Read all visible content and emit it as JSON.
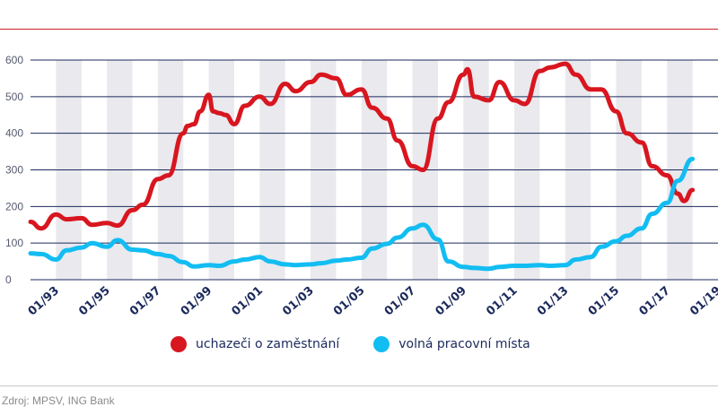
{
  "title_text": "",
  "source_text": "Zdroj: MPSV, ING Bank",
  "colors": {
    "title": "#cf2027",
    "series_unemployed": "#d8161f",
    "series_vacancies": "#12bdf2",
    "shade": "#e9e9ee",
    "grid": "#1c2a5c",
    "axis_text": "#1c2a5c"
  },
  "chart_data": {
    "type": "line",
    "title": "",
    "xlabel": "",
    "ylabel": "",
    "xlim": [
      "1992-01",
      "2019-01"
    ],
    "ylim": [
      0,
      600
    ],
    "y_ticks": [
      "0",
      "100",
      "200",
      "300",
      "400",
      "500",
      "600"
    ],
    "x_ticks": [
      "01/93",
      "01/95",
      "01/97",
      "01/99",
      "01/01",
      "01/03",
      "01/05",
      "01/07",
      "01/09",
      "01/11",
      "01/13",
      "01/15",
      "01/17",
      "01/19"
    ],
    "shaded_years": [
      1993,
      1995,
      1997,
      1999,
      2001,
      2003,
      2005,
      2007,
      2009,
      2011,
      2013,
      2015,
      2017
    ],
    "grid": true,
    "legend_position": "bottom",
    "series": [
      {
        "name": "uchazeči o zaměstnání",
        "color": "#d8161f",
        "x": [
          "1992-01",
          "1992-06",
          "1993-01",
          "1993-06",
          "1994-01",
          "1994-06",
          "1995-01",
          "1995-06",
          "1996-01",
          "1996-06",
          "1997-01",
          "1997-06",
          "1998-01",
          "1998-03",
          "1998-06",
          "1998-09",
          "1999-01",
          "1999-03",
          "1999-06",
          "1999-09",
          "2000-01",
          "2000-06",
          "2001-01",
          "2001-06",
          "2002-01",
          "2002-06",
          "2003-01",
          "2003-06",
          "2004-01",
          "2004-06",
          "2005-01",
          "2005-06",
          "2006-01",
          "2006-06",
          "2007-01",
          "2007-06",
          "2008-01",
          "2008-06",
          "2009-01",
          "2009-03",
          "2009-06",
          "2010-01",
          "2010-06",
          "2011-01",
          "2011-06",
          "2012-01",
          "2012-06",
          "2013-01",
          "2013-06",
          "2014-01",
          "2014-06",
          "2015-01",
          "2015-06",
          "2016-01",
          "2016-06",
          "2017-01",
          "2017-06",
          "2017-09",
          "2018-01"
        ],
        "values": [
          158,
          140,
          178,
          165,
          168,
          150,
          155,
          148,
          190,
          205,
          275,
          285,
          400,
          420,
          425,
          460,
          505,
          460,
          455,
          450,
          425,
          475,
          500,
          480,
          535,
          515,
          540,
          560,
          550,
          505,
          520,
          470,
          440,
          380,
          310,
          300,
          440,
          485,
          560,
          575,
          500,
          490,
          540,
          490,
          480,
          570,
          580,
          590,
          560,
          520,
          520,
          460,
          400,
          375,
          310,
          285,
          235,
          215,
          245
        ]
      },
      {
        "name": "volná pracovní místa",
        "color": "#12bdf2",
        "x": [
          "1992-01",
          "1992-06",
          "1993-01",
          "1993-06",
          "1994-01",
          "1994-06",
          "1995-01",
          "1995-06",
          "1996-01",
          "1996-06",
          "1997-01",
          "1997-06",
          "1998-01",
          "1998-06",
          "1999-01",
          "1999-06",
          "2000-01",
          "2000-06",
          "2001-01",
          "2001-06",
          "2002-01",
          "2002-06",
          "2003-01",
          "2003-06",
          "2004-01",
          "2004-06",
          "2005-01",
          "2005-06",
          "2006-01",
          "2006-06",
          "2007-01",
          "2007-06",
          "2008-01",
          "2008-06",
          "2009-01",
          "2009-06",
          "2010-01",
          "2010-06",
          "2011-01",
          "2011-06",
          "2012-01",
          "2012-06",
          "2013-01",
          "2013-06",
          "2014-01",
          "2014-06",
          "2015-01",
          "2015-06",
          "2016-01",
          "2016-06",
          "2017-01",
          "2017-06",
          "2018-01"
        ],
        "values": [
          72,
          70,
          55,
          80,
          88,
          100,
          90,
          108,
          82,
          80,
          70,
          65,
          48,
          36,
          40,
          38,
          50,
          55,
          62,
          50,
          42,
          40,
          42,
          45,
          52,
          55,
          60,
          85,
          98,
          115,
          140,
          150,
          110,
          50,
          35,
          32,
          30,
          35,
          38,
          38,
          40,
          38,
          40,
          55,
          62,
          90,
          105,
          120,
          140,
          180,
          210,
          270,
          330
        ]
      }
    ]
  }
}
